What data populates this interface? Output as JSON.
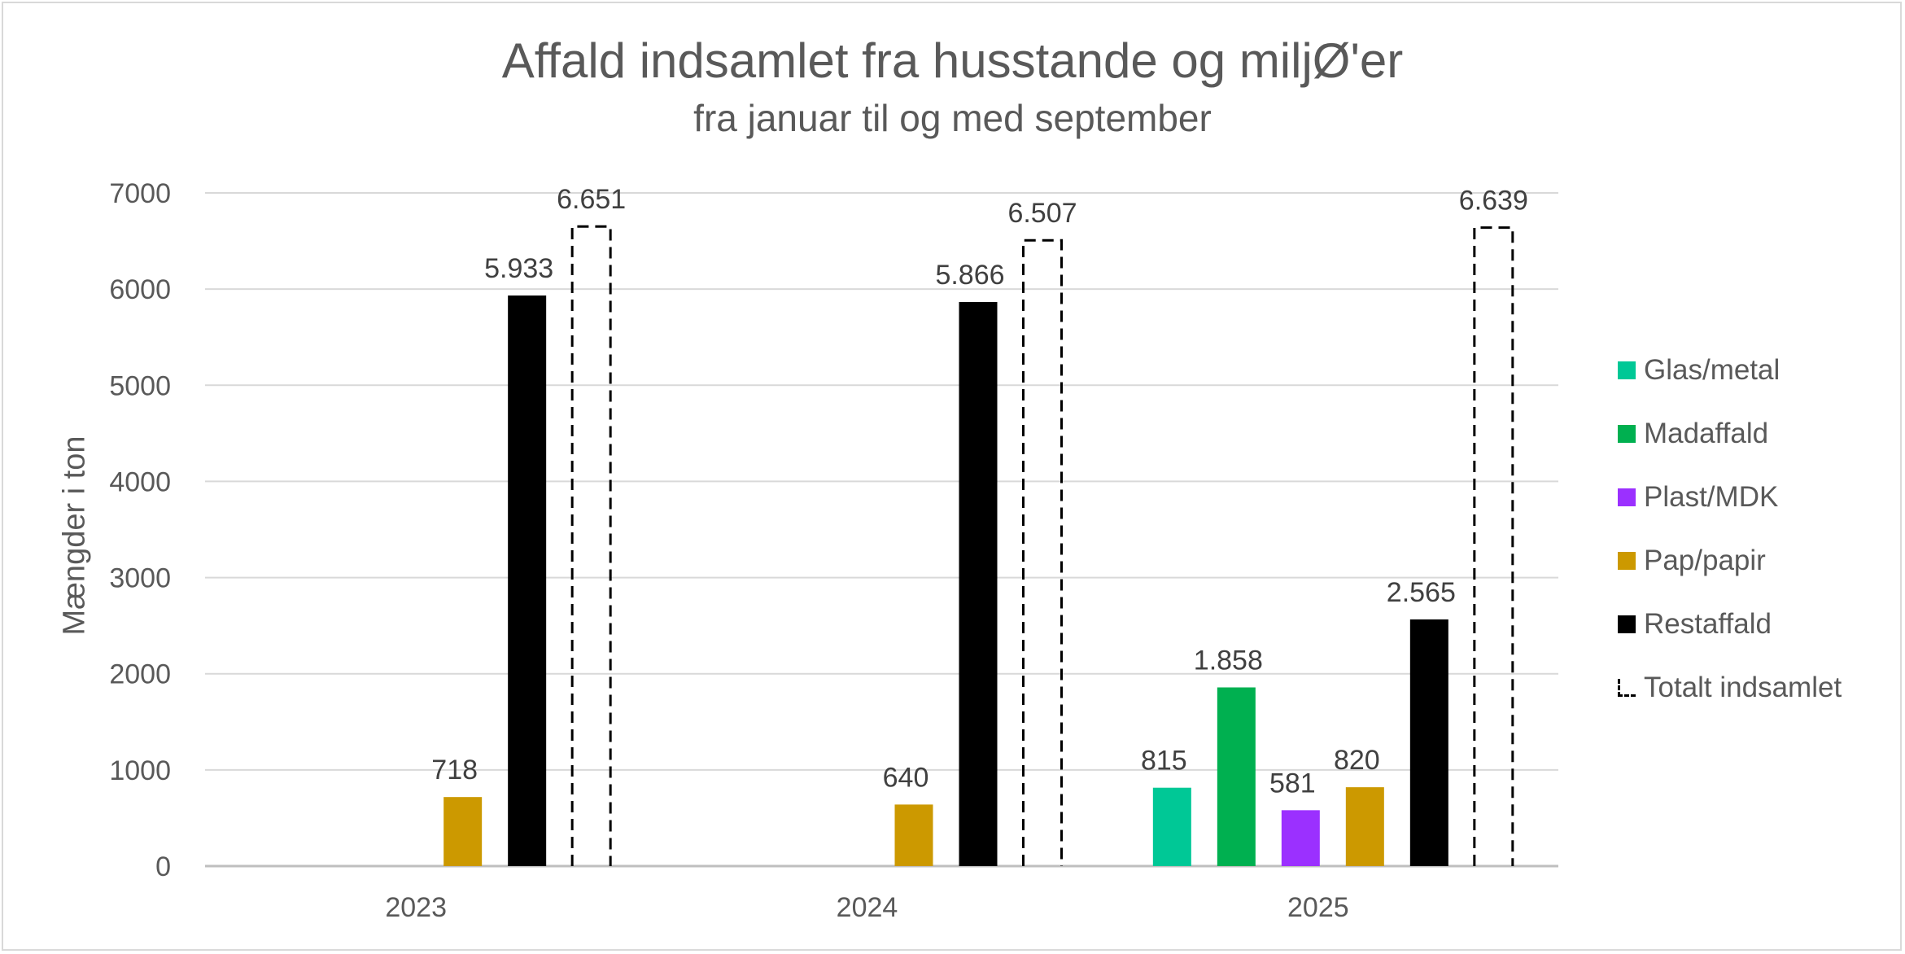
{
  "chart_data": {
    "type": "bar",
    "title": "Affald indsamlet fra husstande og miljØ'er",
    "subtitle": "fra januar til og med september",
    "ylabel": "Mængder i ton",
    "xlabel": "",
    "ylim": [
      0,
      7000
    ],
    "yticks": [
      "0",
      "1000",
      "2000",
      "3000",
      "4000",
      "5000",
      "6000",
      "7000"
    ],
    "categories": [
      "2023",
      "2024",
      "2025"
    ],
    "series": [
      {
        "name": "Glas/metal",
        "color": "#00C896",
        "values": [
          null,
          null,
          815
        ],
        "labels": [
          "",
          "",
          "815"
        ]
      },
      {
        "name": "Madaffald",
        "color": "#00B050",
        "values": [
          null,
          null,
          1858
        ],
        "labels": [
          "",
          "",
          "1.858"
        ]
      },
      {
        "name": "Plast/MDK",
        "color": "#9B30FF",
        "values": [
          null,
          null,
          581
        ],
        "labels": [
          "",
          "",
          "581"
        ]
      },
      {
        "name": "Pap/papir",
        "color": "#CC9900",
        "values": [
          718,
          640,
          820
        ],
        "labels": [
          "718",
          "640",
          "820"
        ]
      },
      {
        "name": "Restaffald",
        "color": "#000000",
        "values": [
          5933,
          5866,
          2565
        ],
        "labels": [
          "5.933",
          "5.866",
          "2.565"
        ]
      },
      {
        "name": "Totalt indsamlet",
        "color": "#000000",
        "style": "dashed-outline",
        "values": [
          6651,
          6507,
          6639
        ],
        "labels": [
          "6.651",
          "6.507",
          "6.639"
        ]
      }
    ],
    "grid": true,
    "legend": "right"
  }
}
